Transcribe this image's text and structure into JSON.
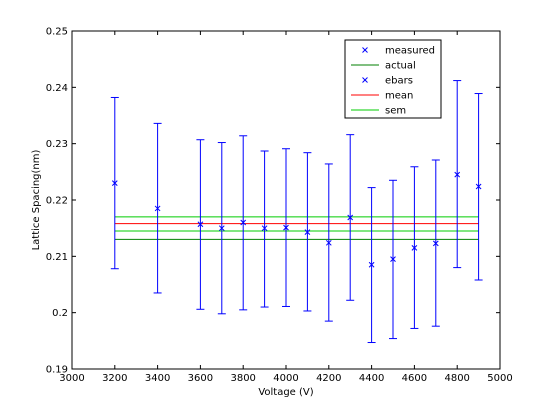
{
  "chart_data": {
    "type": "scatter",
    "title": "",
    "xlabel": "Voltage (V)",
    "ylabel": "Lattice Spacing(nm)",
    "xlim": [
      3000,
      5000
    ],
    "ylim": [
      0.19,
      0.25
    ],
    "xticks": [
      3000,
      3200,
      3400,
      3600,
      3800,
      4000,
      4200,
      4400,
      4600,
      4800,
      5000
    ],
    "yticks": [
      0.19,
      0.2,
      0.21,
      0.22,
      0.23,
      0.24,
      0.25
    ],
    "xtick_labels": [
      "3000",
      "3200",
      "3400",
      "3600",
      "3800",
      "4000",
      "4200",
      "4400",
      "4600",
      "4800",
      "5000"
    ],
    "ytick_labels": [
      "0.19",
      "0.2",
      "0.21",
      "0.22",
      "0.23",
      "0.24",
      "0.25"
    ],
    "grid": false,
    "legend_position": "top-right",
    "measured": {
      "name": "measured",
      "color": "#0000ff",
      "x": [
        3200,
        3400,
        3600,
        3700,
        3800,
        3900,
        4000,
        4100,
        4200,
        4300,
        4400,
        4500,
        4600,
        4700,
        4800,
        4900
      ],
      "y": [
        0.223,
        0.2185,
        0.2157,
        0.215,
        0.216,
        0.215,
        0.2151,
        0.2143,
        0.2124,
        0.2169,
        0.2085,
        0.2095,
        0.2115,
        0.2123,
        0.2245,
        0.2224
      ]
    },
    "ebars": {
      "name": "ebars",
      "color": "#0000ff",
      "lower": [
        0.2078,
        0.2035,
        0.2006,
        0.1998,
        0.2005,
        0.201,
        0.2011,
        0.2003,
        0.1985,
        0.2022,
        0.1947,
        0.1954,
        0.1972,
        0.1976,
        0.208,
        0.2058
      ],
      "upper": [
        0.2382,
        0.2336,
        0.2307,
        0.2302,
        0.2314,
        0.2287,
        0.2291,
        0.2284,
        0.2264,
        0.2316,
        0.2222,
        0.2235,
        0.2259,
        0.2271,
        0.2412,
        0.2389
      ]
    },
    "actual": {
      "name": "actual",
      "color": "#007f00",
      "x_range": [
        3200,
        4900
      ],
      "y": [
        0.213
      ]
    },
    "mean": {
      "name": "mean",
      "color": "#ff0000",
      "x_range": [
        3200,
        4900
      ],
      "y": [
        0.2158
      ]
    },
    "sem": {
      "name": "sem",
      "color": "#00cc00",
      "x_range": [
        3200,
        4900
      ],
      "y": [
        0.2145,
        0.217
      ]
    },
    "legend": [
      "measured",
      "actual",
      "ebars",
      "mean",
      "sem"
    ]
  }
}
